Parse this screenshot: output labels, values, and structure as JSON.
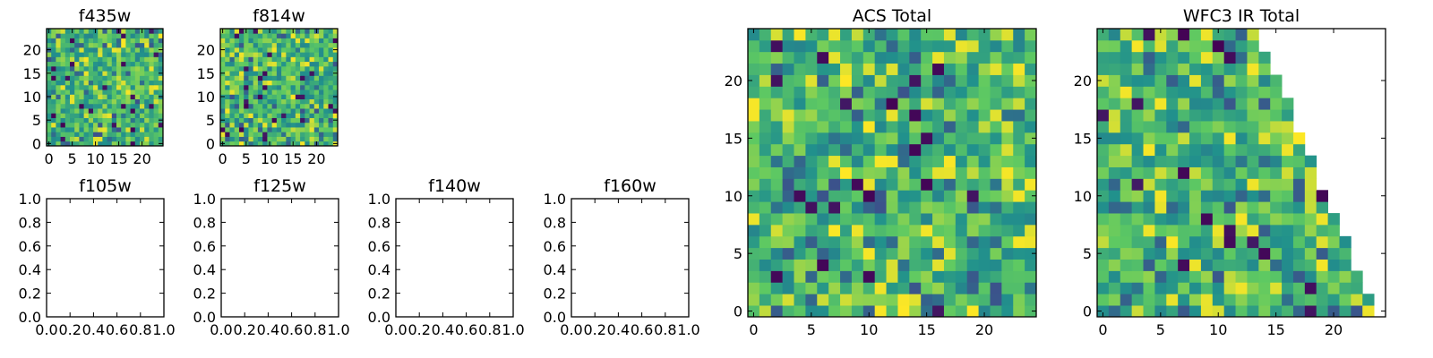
{
  "chart_data": [
    {
      "type": "heatmap",
      "title": "f435w",
      "grid": 25,
      "xlim": [
        0,
        24
      ],
      "ylim": [
        0,
        24
      ],
      "xticks": [
        "0",
        "5",
        "10",
        "15",
        "20"
      ],
      "yticks": [
        "0",
        "5",
        "10",
        "15",
        "20"
      ],
      "empty": false,
      "seed": 11
    },
    {
      "type": "heatmap",
      "title": "f814w",
      "grid": 25,
      "xlim": [
        0,
        24
      ],
      "ylim": [
        0,
        24
      ],
      "xticks": [
        "0",
        "5",
        "10",
        "15",
        "20"
      ],
      "yticks": [
        "0",
        "5",
        "10",
        "15",
        "20"
      ],
      "empty": false,
      "seed": 23
    },
    {
      "type": "heatmap",
      "title": "f105w",
      "xlim": [
        0,
        1
      ],
      "ylim": [
        0,
        1
      ],
      "xticks": [
        "0.0",
        "0.2",
        "0.4",
        "0.6",
        "0.8",
        "1.0"
      ],
      "yticks": [
        "0.0",
        "0.2",
        "0.4",
        "0.6",
        "0.8",
        "1.0"
      ],
      "empty": true
    },
    {
      "type": "heatmap",
      "title": "f125w",
      "xlim": [
        0,
        1
      ],
      "ylim": [
        0,
        1
      ],
      "xticks": [
        "0.0",
        "0.2",
        "0.4",
        "0.6",
        "0.8",
        "1.0"
      ],
      "yticks": [
        "0.0",
        "0.2",
        "0.4",
        "0.6",
        "0.8",
        "1.0"
      ],
      "empty": true
    },
    {
      "type": "heatmap",
      "title": "f140w",
      "xlim": [
        0,
        1
      ],
      "ylim": [
        0,
        1
      ],
      "xticks": [
        "0.0",
        "0.2",
        "0.4",
        "0.6",
        "0.8",
        "1.0"
      ],
      "yticks": [
        "0.0",
        "0.2",
        "0.4",
        "0.6",
        "0.8",
        "1.0"
      ],
      "empty": true
    },
    {
      "type": "heatmap",
      "title": "f160w",
      "xlim": [
        0,
        1
      ],
      "ylim": [
        0,
        1
      ],
      "xticks": [
        "0.0",
        "0.2",
        "0.4",
        "0.6",
        "0.8",
        "1.0"
      ],
      "yticks": [
        "0.0",
        "0.2",
        "0.4",
        "0.6",
        "0.8",
        "1.0"
      ],
      "empty": true
    },
    {
      "type": "heatmap",
      "title": "ACS Total",
      "grid": 25,
      "xlim": [
        0,
        24
      ],
      "ylim": [
        0,
        24
      ],
      "xticks": [
        "0",
        "5",
        "10",
        "15",
        "20"
      ],
      "yticks": [
        "0",
        "5",
        "10",
        "15",
        "20"
      ],
      "empty": false,
      "seed": 37
    },
    {
      "type": "heatmap",
      "title": "WFC3 IR Total",
      "grid": 25,
      "xlim": [
        0,
        24
      ],
      "ylim": [
        0,
        24
      ],
      "xticks": [
        "0",
        "5",
        "10",
        "15",
        "20"
      ],
      "yticks": [
        "0",
        "5",
        "10",
        "15",
        "20"
      ],
      "empty": false,
      "seed": 53,
      "triangular_mask": true
    }
  ],
  "colors": {
    "colormap": "viridis",
    "cmap_stops": [
      "#440154",
      "#3b528b",
      "#21918c",
      "#5ec962",
      "#fde725"
    ],
    "axes": "#000000",
    "background": "#ffffff"
  }
}
